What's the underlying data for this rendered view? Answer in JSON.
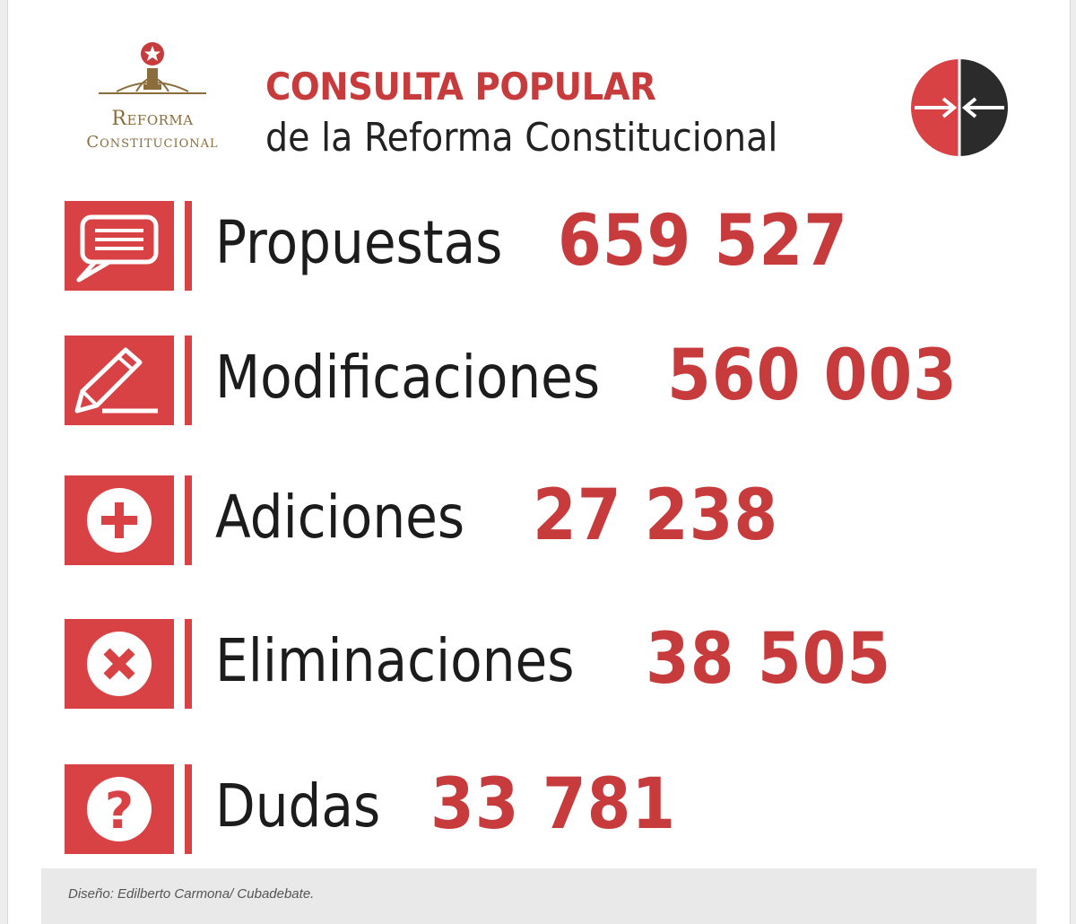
{
  "header": {
    "logo_line1": "Reforma",
    "logo_line2": "Constitucional",
    "title": "CONSULTA POPULAR",
    "subtitle": "de la Reforma Constitucional"
  },
  "colors": {
    "accent": "#c83b3c",
    "icon_red": "#d94245",
    "dark": "#2b2b2b",
    "gold": "#8a6d3b"
  },
  "rows": [
    {
      "icon": "speech-bubble-icon",
      "label": "Propuestas",
      "value": "659 527"
    },
    {
      "icon": "pencil-icon",
      "label": "Modificaciones",
      "value": "560 003"
    },
    {
      "icon": "plus-circle-icon",
      "label": "Adiciones",
      "value": "27 238"
    },
    {
      "icon": "x-circle-icon",
      "label": "Eliminaciones",
      "value": "38 505"
    },
    {
      "icon": "question-circle-icon",
      "label": "Dudas",
      "value": "33 781"
    }
  ],
  "caption": "Diseño: Edilberto Carmona/ Cubadebate."
}
